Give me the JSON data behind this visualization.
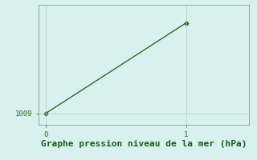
{
  "x_values": [
    0,
    1
  ],
  "y_values": [
    1009,
    1013
  ],
  "line_color": "#2d6a2d",
  "marker": "D",
  "marker_size": 2.5,
  "background_color": "#d8f0ee",
  "grid_color": "#b0c8c8",
  "xlabel": "Graphe pression niveau de la mer (hPa)",
  "xlabel_color": "#1a5c1a",
  "xlabel_fontsize": 8,
  "tick_color": "#2d6a2d",
  "tick_labelsize": 6.5,
  "xlim": [
    -0.05,
    1.45
  ],
  "ylim": [
    1008.5,
    1013.8
  ],
  "ytick_values": [
    1009
  ],
  "xtick_values": [
    0,
    1
  ],
  "line_width": 1.0,
  "figure_bg": "#d8f0ee",
  "spine_color": "#8aaaaa"
}
